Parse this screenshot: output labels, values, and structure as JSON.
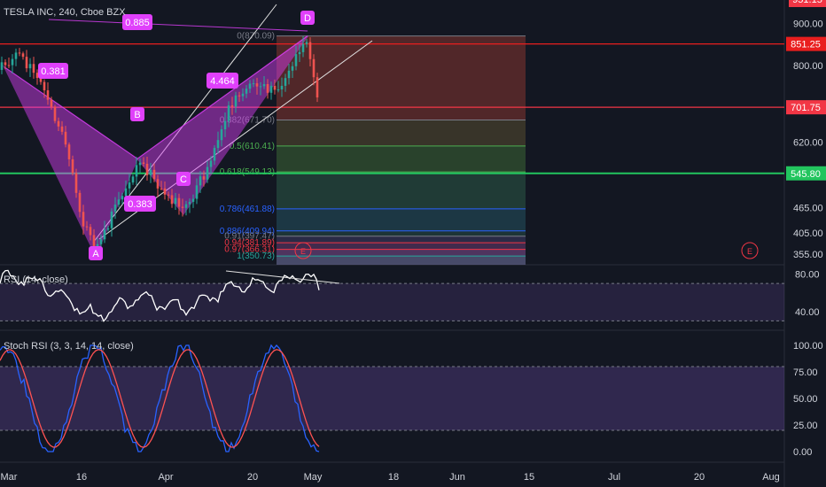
{
  "header": {
    "symbol": "TESLA INC, 240, Cboe BZX",
    "top_price": "951.15"
  },
  "price_axis": {
    "ticks": [
      "900.00",
      "800.00",
      "620.00",
      "465.00",
      "405.00",
      "355.00"
    ],
    "tick_values": [
      900,
      800,
      620,
      465,
      405,
      355
    ],
    "badges": [
      {
        "label": "851.25",
        "value": 851.25,
        "color": "#e91e1e"
      },
      {
        "label": "701.75",
        "value": 701.75,
        "color": "#f23645"
      },
      {
        "label": "545.80",
        "value": 545.8,
        "color": "#22c55e"
      }
    ]
  },
  "time_axis": {
    "labels": [
      "Mar",
      "16",
      "Apr",
      "20",
      "May",
      "18",
      "Jun",
      "15",
      "Jul",
      "20",
      "Aug"
    ]
  },
  "harmonic": {
    "points": [
      "A",
      "B",
      "C",
      "D"
    ],
    "ratios": [
      "0.885",
      "0.381",
      "4.464",
      "0.383"
    ],
    "event_markers": [
      "E",
      "E"
    ]
  },
  "fibonacci": {
    "levels": [
      {
        "label": "0(870.09)",
        "value": 870.09,
        "color": "#787b86"
      },
      {
        "label": "0.382(671.70)",
        "value": 671.7,
        "color": "#787b86"
      },
      {
        "label": "0.5(610.41)",
        "value": 610.41,
        "color": "#4caf50"
      },
      {
        "label": "0.618(549.13)",
        "value": 549.13,
        "color": "#4caf50"
      },
      {
        "label": "0.786(461.88)",
        "value": 461.88,
        "color": "#2962ff"
      },
      {
        "label": "0.886(409.94)",
        "value": 409.94,
        "color": "#2962ff"
      },
      {
        "label": "0.91(397.47)",
        "value": 397.47,
        "color": "#787b86"
      },
      {
        "label": "0.94(381.89)",
        "value": 381.89,
        "color": "#f23645"
      },
      {
        "label": "0.97(366.31)",
        "value": 366.31,
        "color": "#f23645"
      },
      {
        "label": "1(350.73)",
        "value": 350.73,
        "color": "#26a69a"
      }
    ]
  },
  "rsi_panel": {
    "title": "RSI (14, close)",
    "ticks": [
      "80.00",
      "40.00"
    ]
  },
  "stoch_panel": {
    "title": "Stoch RSI (3, 3, 14, 14, close)",
    "ticks": [
      "100.00",
      "75.00",
      "50.00",
      "25.00",
      "0.00"
    ]
  },
  "chart_data": {
    "type": "line",
    "title": "TESLA INC, 240, Cboe BZX",
    "price_ylim": [
      330,
      955
    ],
    "swing_points": {
      "X": 880,
      "A": 351,
      "B": 580,
      "C": 450,
      "D": 870
    },
    "horizontal_levels": [
      851.25,
      701.75,
      545.8
    ],
    "rsi_levels": [
      70,
      30
    ],
    "stoch_levels": [
      80,
      20
    ]
  },
  "colors": {
    "background": "#131722",
    "pattern": "#e040fb",
    "up": "#26a69a",
    "down": "#ef5350",
    "rsi_band": "#7e57c2",
    "stoch_k": "#2962ff",
    "stoch_d": "#ff5252"
  }
}
